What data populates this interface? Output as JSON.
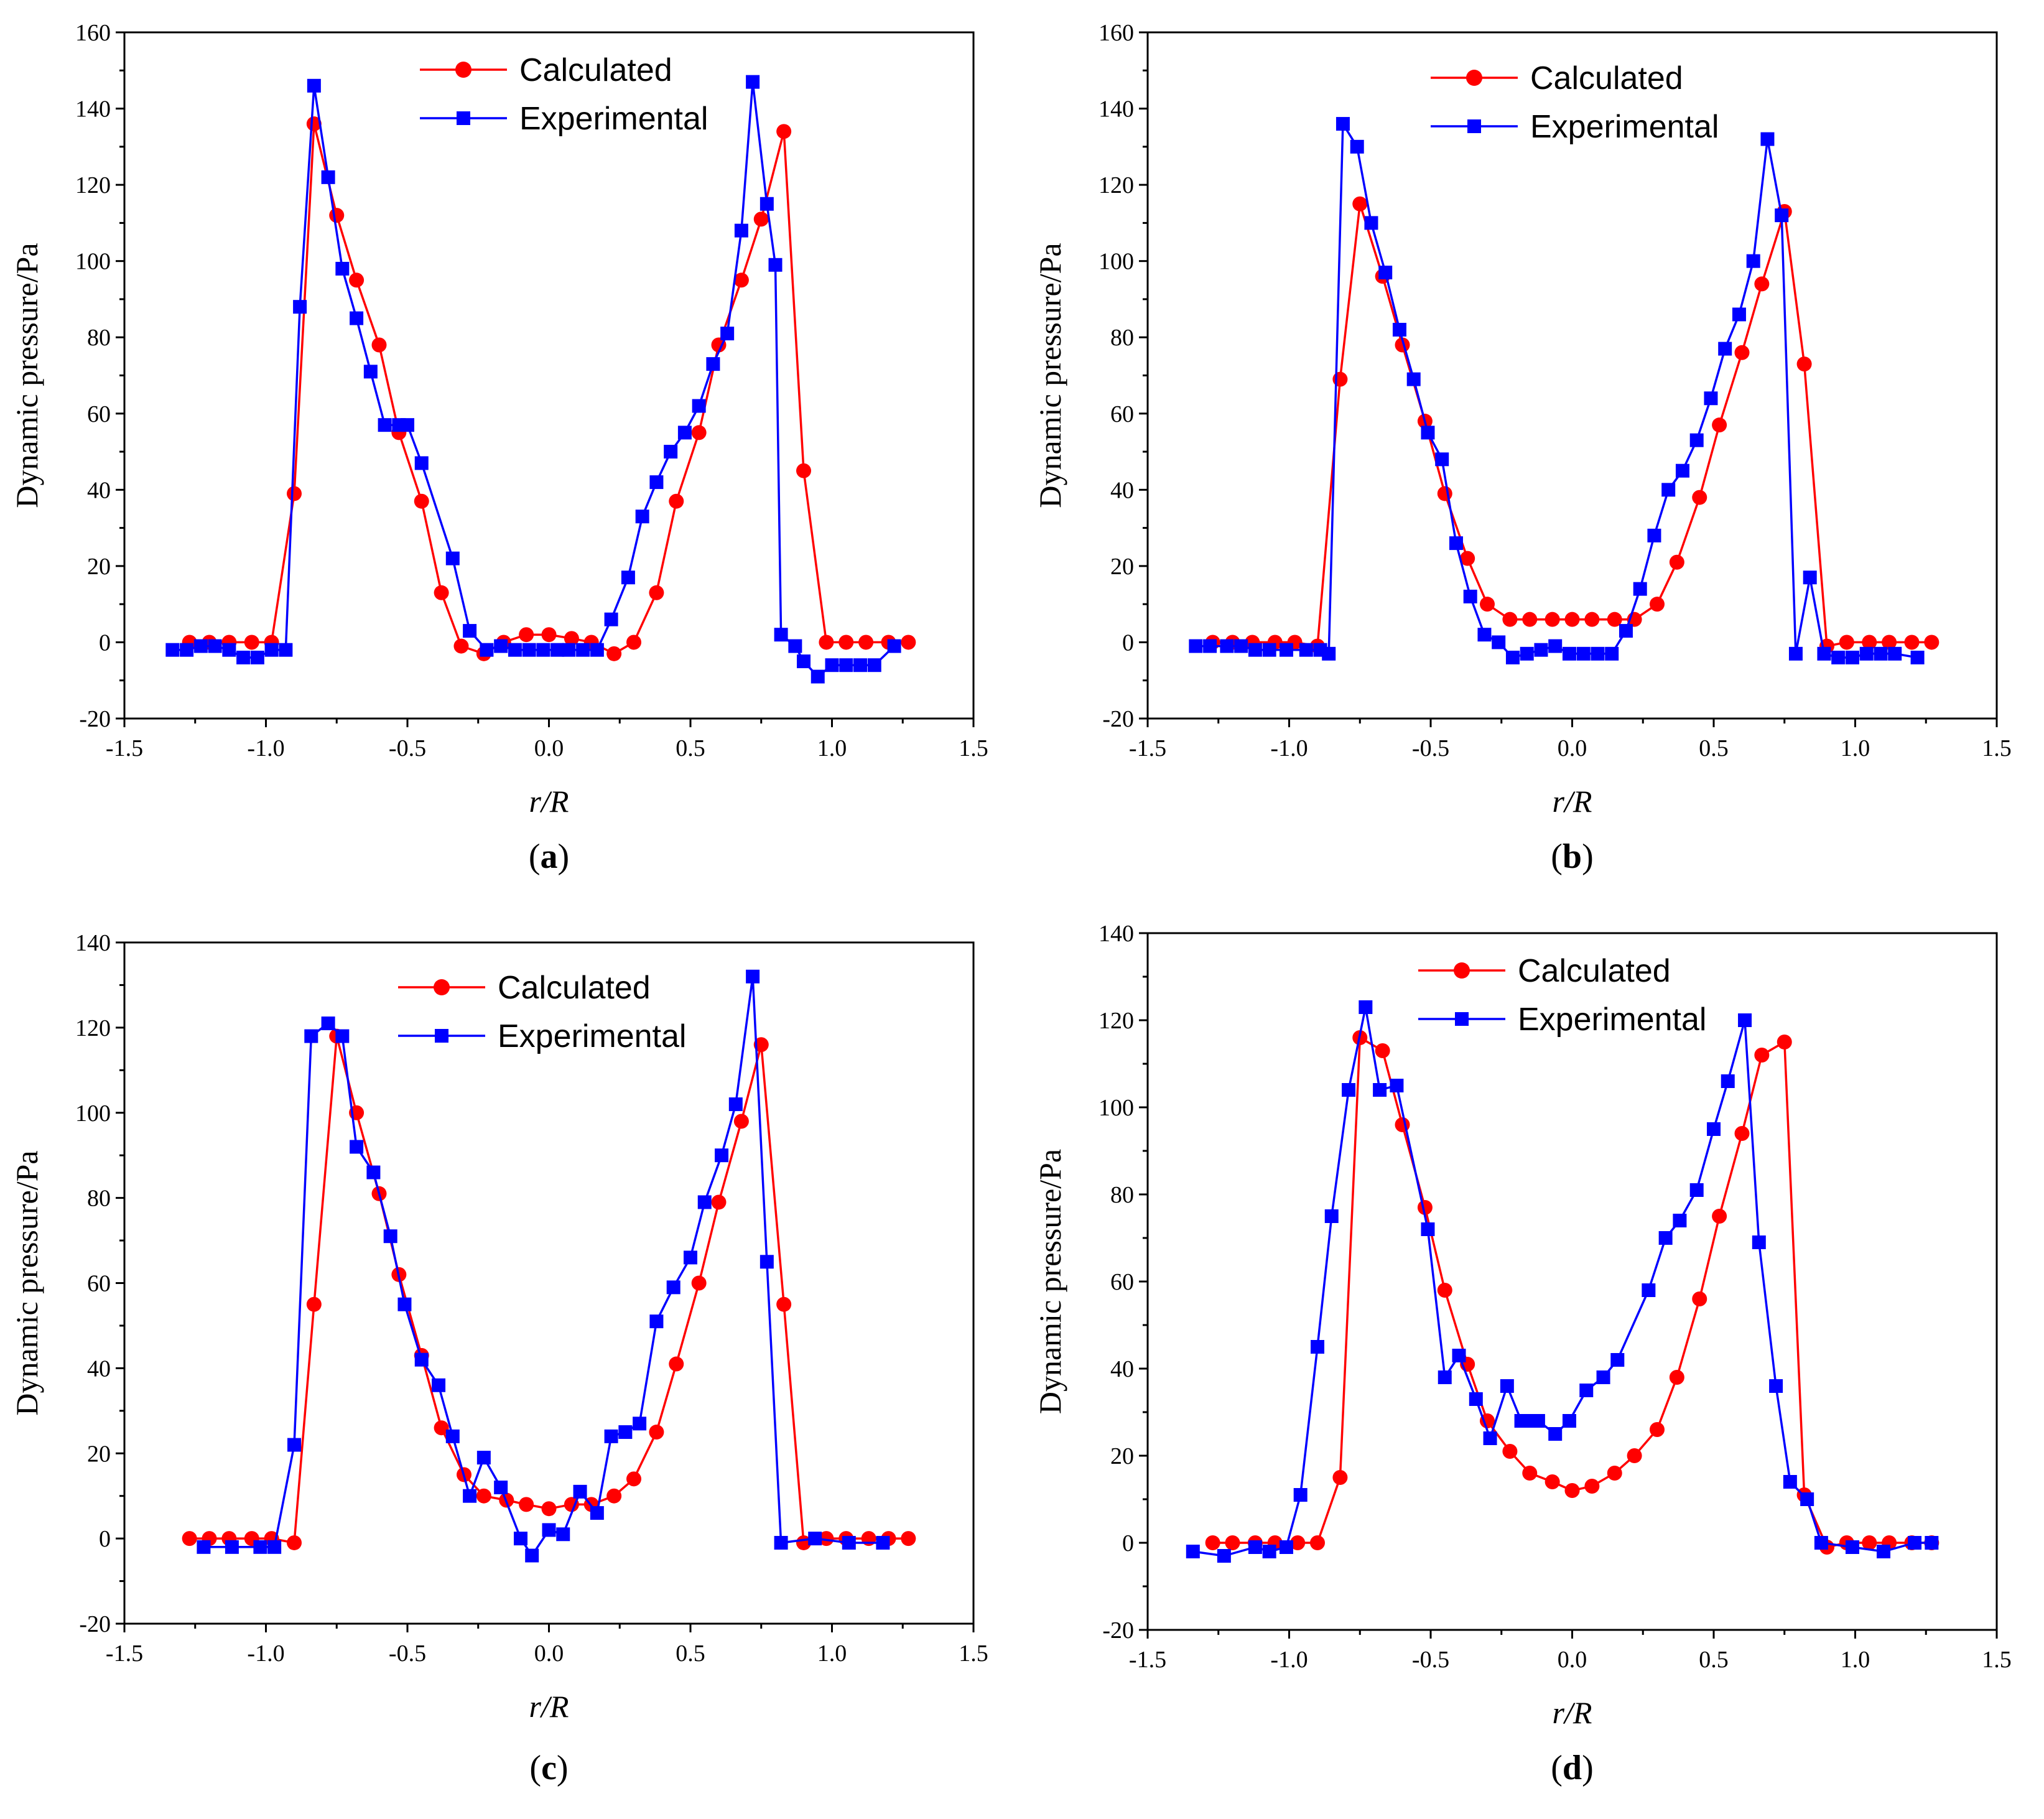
{
  "colors": {
    "calculated": "#ff0000",
    "experimental": "#0000ff"
  },
  "chart_data": [
    {
      "type": "line",
      "panel": "a",
      "xlabel": "r/R",
      "ylabel": "Dynamic pressure/Pa",
      "xlim": [
        -1.5,
        1.5
      ],
      "ylim": [
        -20,
        160
      ],
      "xticks": [
        "-1.5",
        "-1.0",
        "-0.5",
        "0.0",
        "0.5",
        "1.0",
        "1.5"
      ],
      "yticks": [
        "-20",
        "0",
        "20",
        "40",
        "60",
        "80",
        "100",
        "120",
        "140",
        "160"
      ],
      "xtick_values": [
        -1.5,
        -1.0,
        -0.5,
        0.0,
        0.5,
        1.0,
        1.5
      ],
      "ytick_values": [
        -20,
        0,
        20,
        40,
        60,
        80,
        100,
        120,
        140,
        160
      ],
      "legend": {
        "position": "top-center",
        "entries": [
          "Calculated",
          "Experimental"
        ]
      },
      "series": [
        {
          "name": "Calculated",
          "marker": "circle",
          "x": [
            -1.27,
            -1.2,
            -1.13,
            -1.05,
            -0.98,
            -0.9,
            -0.83,
            -0.75,
            -0.68,
            -0.6,
            -0.53,
            -0.45,
            -0.38,
            -0.31,
            -0.23,
            -0.16,
            -0.08,
            0.0,
            0.08,
            0.15,
            0.23,
            0.3,
            0.38,
            0.45,
            0.53,
            0.6,
            0.68,
            0.75,
            0.83,
            0.9,
            0.98,
            1.05,
            1.12,
            1.2,
            1.27
          ],
          "y": [
            0,
            0,
            0,
            0,
            0,
            39,
            136,
            112,
            95,
            78,
            55,
            37,
            13,
            -1,
            -3,
            0,
            2,
            2,
            1,
            0,
            -3,
            0,
            13,
            37,
            55,
            78,
            95,
            111,
            134,
            45,
            0,
            0,
            0,
            0,
            0
          ]
        },
        {
          "name": "Experimental",
          "marker": "square",
          "x": [
            -1.33,
            -1.28,
            -1.23,
            -1.18,
            -1.13,
            -1.08,
            -1.03,
            -0.98,
            -0.93,
            -0.88,
            -0.83,
            -0.78,
            -0.73,
            -0.68,
            -0.63,
            -0.58,
            -0.53,
            -0.5,
            -0.45,
            -0.34,
            -0.28,
            -0.22,
            -0.17,
            -0.12,
            -0.07,
            -0.02,
            0.03,
            0.07,
            0.12,
            0.17,
            0.22,
            0.28,
            0.33,
            0.38,
            0.43,
            0.48,
            0.53,
            0.58,
            0.63,
            0.68,
            0.72,
            0.77,
            0.8,
            0.82,
            0.87,
            0.9,
            0.95,
            1.0,
            1.05,
            1.1,
            1.15,
            1.22
          ],
          "y": [
            -2,
            -2,
            -1,
            -1,
            -2,
            -4,
            -4,
            -2,
            -2,
            88,
            146,
            122,
            98,
            85,
            71,
            57,
            57,
            57,
            47,
            22,
            3,
            -2,
            -1,
            -2,
            -2,
            -2,
            -2,
            -2,
            -2,
            -2,
            6,
            17,
            33,
            42,
            50,
            55,
            62,
            73,
            81,
            108,
            147,
            115,
            99,
            2,
            -1,
            -5,
            -9,
            -6,
            -6,
            -6,
            -6,
            -1
          ]
        }
      ]
    },
    {
      "type": "line",
      "panel": "b",
      "xlabel": "r/R",
      "ylabel": "Dynamic pressure/Pa",
      "xlim": [
        -1.5,
        1.5
      ],
      "ylim": [
        -20,
        160
      ],
      "xticks": [
        "-1.5",
        "-1.0",
        "-0.5",
        "0.0",
        "0.5",
        "1.0",
        "1.5"
      ],
      "yticks": [
        "-20",
        "0",
        "20",
        "40",
        "60",
        "80",
        "100",
        "120",
        "140",
        "160"
      ],
      "xtick_values": [
        -1.5,
        -1.0,
        -0.5,
        0.0,
        0.5,
        1.0,
        1.5
      ],
      "ytick_values": [
        -20,
        0,
        20,
        40,
        60,
        80,
        100,
        120,
        140,
        160
      ],
      "legend": {
        "position": "top-center",
        "entries": [
          "Calculated",
          "Experimental"
        ]
      },
      "series": [
        {
          "name": "Calculated",
          "marker": "circle",
          "x": [
            -1.27,
            -1.2,
            -1.13,
            -1.05,
            -0.98,
            -0.9,
            -0.82,
            -0.75,
            -0.67,
            -0.6,
            -0.52,
            -0.45,
            -0.37,
            -0.3,
            -0.22,
            -0.15,
            -0.07,
            0.0,
            0.07,
            0.15,
            0.22,
            0.3,
            0.37,
            0.45,
            0.52,
            0.6,
            0.67,
            0.75,
            0.82,
            0.9,
            0.97,
            1.05,
            1.12,
            1.2,
            1.27
          ],
          "y": [
            0,
            0,
            0,
            0,
            0,
            -1,
            69,
            115,
            96,
            78,
            58,
            39,
            22,
            10,
            6,
            6,
            6,
            6,
            6,
            6,
            6,
            10,
            21,
            38,
            57,
            76,
            94,
            113,
            73,
            -1,
            0,
            0,
            0,
            0,
            0
          ]
        },
        {
          "name": "Experimental",
          "marker": "square",
          "x": [
            -1.33,
            -1.28,
            -1.22,
            -1.17,
            -1.12,
            -1.07,
            -1.01,
            -0.94,
            -0.89,
            -0.86,
            -0.81,
            -0.76,
            -0.71,
            -0.66,
            -0.61,
            -0.56,
            -0.51,
            -0.46,
            -0.41,
            -0.36,
            -0.31,
            -0.26,
            -0.21,
            -0.16,
            -0.11,
            -0.06,
            -0.01,
            0.04,
            0.09,
            0.14,
            0.19,
            0.24,
            0.29,
            0.34,
            0.39,
            0.44,
            0.49,
            0.54,
            0.59,
            0.64,
            0.69,
            0.74,
            0.79,
            0.84,
            0.89,
            0.94,
            0.99,
            1.04,
            1.09,
            1.14,
            1.22
          ],
          "y": [
            -1,
            -1,
            -1,
            -1,
            -2,
            -2,
            -2,
            -2,
            -2,
            -3,
            136,
            130,
            110,
            97,
            82,
            69,
            55,
            48,
            26,
            12,
            2,
            0,
            -4,
            -3,
            -2,
            -1,
            -3,
            -3,
            -3,
            -3,
            3,
            14,
            28,
            40,
            45,
            53,
            64,
            77,
            86,
            100,
            132,
            112,
            -3,
            17,
            -3,
            -4,
            -4,
            -3,
            -3,
            -3,
            -4
          ]
        }
      ]
    },
    {
      "type": "line",
      "panel": "c",
      "xlabel": "r/R",
      "ylabel": "Dynamic pressure/Pa",
      "xlim": [
        -1.5,
        1.5
      ],
      "ylim": [
        -20,
        140
      ],
      "xticks": [
        "-1.5",
        "-1.0",
        "-0.5",
        "0.0",
        "0.5",
        "1.0",
        "1.5"
      ],
      "yticks": [
        "-20",
        "0",
        "20",
        "40",
        "60",
        "80",
        "100",
        "120",
        "140"
      ],
      "xtick_values": [
        -1.5,
        -1.0,
        -0.5,
        0.0,
        0.5,
        1.0,
        1.5
      ],
      "ytick_values": [
        -20,
        0,
        20,
        40,
        60,
        80,
        100,
        120,
        140
      ],
      "legend": {
        "position": "top-center",
        "entries": [
          "Calculated",
          "Experimental"
        ]
      },
      "series": [
        {
          "name": "Calculated",
          "marker": "circle",
          "x": [
            -1.27,
            -1.2,
            -1.13,
            -1.05,
            -0.98,
            -0.9,
            -0.83,
            -0.75,
            -0.68,
            -0.6,
            -0.53,
            -0.45,
            -0.38,
            -0.3,
            -0.23,
            -0.15,
            -0.08,
            0.0,
            0.08,
            0.15,
            0.23,
            0.3,
            0.38,
            0.45,
            0.53,
            0.6,
            0.68,
            0.75,
            0.83,
            0.9,
            0.98,
            1.05,
            1.13,
            1.2,
            1.27
          ],
          "y": [
            0,
            0,
            0,
            0,
            0,
            -1,
            55,
            118,
            100,
            81,
            62,
            43,
            26,
            15,
            10,
            9,
            8,
            7,
            8,
            8,
            10,
            14,
            25,
            41,
            60,
            79,
            98,
            116,
            55,
            -1,
            0,
            0,
            0,
            0,
            0
          ]
        },
        {
          "name": "Experimental",
          "marker": "square",
          "x": [
            -1.22,
            -1.12,
            -1.02,
            -0.97,
            -0.9,
            -0.84,
            -0.78,
            -0.73,
            -0.68,
            -0.62,
            -0.56,
            -0.51,
            -0.45,
            -0.39,
            -0.34,
            -0.28,
            -0.23,
            -0.17,
            -0.1,
            -0.06,
            0.0,
            0.05,
            0.11,
            0.17,
            0.22,
            0.27,
            0.32,
            0.38,
            0.44,
            0.5,
            0.55,
            0.61,
            0.66,
            0.72,
            0.77,
            0.82,
            0.94,
            1.06,
            1.18
          ],
          "y": [
            -2,
            -2,
            -2,
            -2,
            22,
            118,
            121,
            118,
            92,
            86,
            71,
            55,
            42,
            36,
            24,
            10,
            19,
            12,
            0,
            -4,
            2,
            1,
            11,
            6,
            24,
            25,
            27,
            51,
            59,
            66,
            79,
            90,
            102,
            132,
            65,
            -1,
            0,
            -1,
            -1
          ]
        }
      ]
    },
    {
      "type": "line",
      "panel": "d",
      "xlabel": "r/R",
      "ylabel": "Dynamic pressure/Pa",
      "xlim": [
        -1.5,
        1.5
      ],
      "ylim": [
        -20,
        140
      ],
      "xticks": [
        "-1.5",
        "-1.0",
        "-0.5",
        "0.0",
        "0.5",
        "1.0",
        "1.5"
      ],
      "yticks": [
        "-20",
        "0",
        "20",
        "40",
        "60",
        "80",
        "100",
        "120",
        "140"
      ],
      "xtick_values": [
        -1.5,
        -1.0,
        -0.5,
        0.0,
        0.5,
        1.0,
        1.5
      ],
      "ytick_values": [
        -20,
        0,
        20,
        40,
        60,
        80,
        100,
        120,
        140
      ],
      "legend": {
        "position": "top-center",
        "entries": [
          "Calculated",
          "Experimental"
        ]
      },
      "series": [
        {
          "name": "Calculated",
          "marker": "circle",
          "x": [
            -1.27,
            -1.2,
            -1.12,
            -1.05,
            -0.97,
            -0.9,
            -0.82,
            -0.75,
            -0.67,
            -0.6,
            -0.52,
            -0.45,
            -0.37,
            -0.3,
            -0.22,
            -0.15,
            -0.07,
            0.0,
            0.07,
            0.15,
            0.22,
            0.3,
            0.37,
            0.45,
            0.52,
            0.6,
            0.67,
            0.75,
            0.82,
            0.9,
            0.97,
            1.05,
            1.12,
            1.2,
            1.27
          ],
          "y": [
            0,
            0,
            0,
            0,
            0,
            0,
            15,
            116,
            113,
            96,
            77,
            58,
            41,
            28,
            21,
            16,
            14,
            12,
            13,
            16,
            20,
            26,
            38,
            56,
            75,
            94,
            112,
            115,
            11,
            -1,
            0,
            0,
            0,
            0,
            0
          ]
        },
        {
          "name": "Experimental",
          "marker": "square",
          "x": [
            -1.34,
            -1.23,
            -1.12,
            -1.07,
            -1.01,
            -0.96,
            -0.9,
            -0.85,
            -0.79,
            -0.73,
            -0.68,
            -0.62,
            -0.51,
            -0.45,
            -0.4,
            -0.34,
            -0.29,
            -0.23,
            -0.18,
            -0.15,
            -0.12,
            -0.06,
            -0.01,
            0.05,
            0.11,
            0.16,
            0.27,
            0.33,
            0.38,
            0.44,
            0.5,
            0.55,
            0.61,
            0.66,
            0.72,
            0.77,
            0.83,
            0.88,
            0.99,
            1.1,
            1.21,
            1.27
          ],
          "y": [
            -2,
            -3,
            -1,
            -2,
            -1,
            11,
            45,
            75,
            104,
            123,
            104,
            105,
            72,
            38,
            43,
            33,
            24,
            36,
            28,
            28,
            28,
            25,
            28,
            35,
            38,
            42,
            58,
            70,
            74,
            81,
            95,
            106,
            120,
            69,
            36,
            14,
            10,
            0,
            -1,
            -2,
            0,
            0
          ]
        }
      ]
    }
  ],
  "panel_labels": [
    "a",
    "b",
    "c",
    "d"
  ]
}
